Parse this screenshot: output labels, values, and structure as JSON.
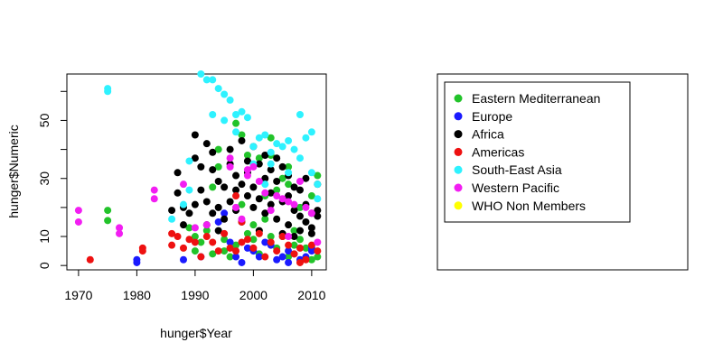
{
  "chart_data": {
    "type": "scatter",
    "title": "",
    "xlabel": "hunger$Year",
    "ylabel": "hunger$Numeric",
    "xlim": [
      1968,
      2012.5
    ],
    "ylim": [
      -1.5,
      66
    ],
    "x_ticks": [
      1970,
      1980,
      1990,
      2000,
      2010
    ],
    "y_ticks": [
      0,
      10,
      30,
      50
    ],
    "grid": false,
    "legend_position": "right (separate panel)",
    "series": [
      {
        "name": "Eastern Mediterranean",
        "color": "#22c32a",
        "points": [
          [
            1975,
            19
          ],
          [
            1975,
            15.5
          ],
          [
            1989,
            13
          ],
          [
            1990,
            10
          ],
          [
            1990,
            5
          ],
          [
            1991,
            8
          ],
          [
            1992,
            12
          ],
          [
            1993,
            4
          ],
          [
            1993,
            27
          ],
          [
            1994,
            40
          ],
          [
            1994,
            34
          ],
          [
            1995,
            5
          ],
          [
            1995,
            9
          ],
          [
            1996,
            3
          ],
          [
            1997,
            7
          ],
          [
            1997,
            49
          ],
          [
            1998,
            45
          ],
          [
            1998,
            21
          ],
          [
            1999,
            11
          ],
          [
            1999,
            38
          ],
          [
            2000,
            9
          ],
          [
            2000,
            14
          ],
          [
            2001,
            4
          ],
          [
            2001,
            37
          ],
          [
            2002,
            16
          ],
          [
            2002,
            24
          ],
          [
            2003,
            44
          ],
          [
            2003,
            10
          ],
          [
            2003,
            38
          ],
          [
            2004,
            6
          ],
          [
            2004,
            26
          ],
          [
            2005,
            10
          ],
          [
            2005,
            30
          ],
          [
            2006,
            3
          ],
          [
            2006,
            28
          ],
          [
            2006,
            34
          ],
          [
            2007,
            12
          ],
          [
            2007,
            7
          ],
          [
            2008,
            9
          ],
          [
            2008,
            20
          ],
          [
            2009,
            6
          ],
          [
            2010,
            24
          ],
          [
            2010,
            2
          ],
          [
            2011,
            31
          ],
          [
            2011,
            3
          ]
        ]
      },
      {
        "name": "Europe",
        "color": "#1a1aff",
        "points": [
          [
            1980,
            2
          ],
          [
            1980,
            1
          ],
          [
            1988,
            2
          ],
          [
            1991,
            3
          ],
          [
            1994,
            15
          ],
          [
            1995,
            18
          ],
          [
            1996,
            8
          ],
          [
            1997,
            3
          ],
          [
            1998,
            1
          ],
          [
            1999,
            6
          ],
          [
            2000,
            5
          ],
          [
            2001,
            3
          ],
          [
            2002,
            8
          ],
          [
            2003,
            7
          ],
          [
            2004,
            2
          ],
          [
            2005,
            3
          ],
          [
            2006,
            1
          ],
          [
            2006,
            5
          ],
          [
            2007,
            4
          ],
          [
            2008,
            2
          ],
          [
            2009,
            3
          ],
          [
            2010,
            6
          ],
          [
            2010,
            5
          ]
        ]
      },
      {
        "name": "Africa",
        "color": "#000000",
        "points": [
          [
            1986,
            19
          ],
          [
            1987,
            32
          ],
          [
            1987,
            25
          ],
          [
            1988,
            20
          ],
          [
            1988,
            14
          ],
          [
            1989,
            18
          ],
          [
            1990,
            45
          ],
          [
            1990,
            21
          ],
          [
            1990,
            37
          ],
          [
            1991,
            26
          ],
          [
            1991,
            34
          ],
          [
            1992,
            42
          ],
          [
            1992,
            22
          ],
          [
            1992,
            14
          ],
          [
            1993,
            33
          ],
          [
            1993,
            18
          ],
          [
            1993,
            39
          ],
          [
            1994,
            20
          ],
          [
            1994,
            29
          ],
          [
            1994,
            12
          ],
          [
            1995,
            27
          ],
          [
            1995,
            16
          ],
          [
            1996,
            40
          ],
          [
            1996,
            22
          ],
          [
            1996,
            35
          ],
          [
            1997,
            31
          ],
          [
            1997,
            19
          ],
          [
            1997,
            26
          ],
          [
            1998,
            43
          ],
          [
            1998,
            28
          ],
          [
            1998,
            15
          ],
          [
            1999,
            36
          ],
          [
            1999,
            24
          ],
          [
            1999,
            32
          ],
          [
            2000,
            41
          ],
          [
            2000,
            20
          ],
          [
            2000,
            27
          ],
          [
            2001,
            35
          ],
          [
            2001,
            23
          ],
          [
            2001,
            12
          ],
          [
            2002,
            38
          ],
          [
            2002,
            30
          ],
          [
            2002,
            18
          ],
          [
            2003,
            33
          ],
          [
            2003,
            21
          ],
          [
            2003,
            25
          ],
          [
            2004,
            37
          ],
          [
            2004,
            29
          ],
          [
            2004,
            16
          ],
          [
            2005,
            34
          ],
          [
            2005,
            22
          ],
          [
            2005,
            11
          ],
          [
            2006,
            31
          ],
          [
            2006,
            24
          ],
          [
            2006,
            14
          ],
          [
            2007,
            27
          ],
          [
            2007,
            19
          ],
          [
            2007,
            10
          ],
          [
            2008,
            26
          ],
          [
            2008,
            17
          ],
          [
            2008,
            12
          ],
          [
            2009,
            30
          ],
          [
            2009,
            21
          ],
          [
            2009,
            15
          ],
          [
            2010,
            18
          ],
          [
            2010,
            13
          ],
          [
            2010,
            11
          ],
          [
            2011,
            19
          ],
          [
            2011,
            17
          ],
          [
            2011,
            28
          ]
        ]
      },
      {
        "name": "Americas",
        "color": "#ee1111",
        "points": [
          [
            1972,
            2
          ],
          [
            1981,
            6
          ],
          [
            1981,
            5
          ],
          [
            1986,
            11
          ],
          [
            1986,
            7
          ],
          [
            1987,
            10
          ],
          [
            1988,
            6
          ],
          [
            1989,
            9
          ],
          [
            1990,
            8
          ],
          [
            1991,
            3
          ],
          [
            1992,
            10
          ],
          [
            1993,
            8
          ],
          [
            1994,
            5
          ],
          [
            1995,
            11
          ],
          [
            1996,
            6
          ],
          [
            1997,
            24
          ],
          [
            1997,
            5
          ],
          [
            1998,
            15
          ],
          [
            1998,
            8
          ],
          [
            1999,
            9
          ],
          [
            2000,
            6
          ],
          [
            2001,
            11
          ],
          [
            2002,
            3
          ],
          [
            2003,
            8
          ],
          [
            2004,
            5
          ],
          [
            2005,
            10
          ],
          [
            2006,
            7
          ],
          [
            2007,
            4
          ],
          [
            2008,
            6
          ],
          [
            2008,
            1
          ],
          [
            2009,
            2
          ],
          [
            2010,
            7
          ],
          [
            2011,
            5
          ]
        ]
      },
      {
        "name": "South-East Asia",
        "color": "#2ef2ff",
        "points": [
          [
            1975,
            61
          ],
          [
            1975,
            60
          ],
          [
            1986,
            16
          ],
          [
            1988,
            21
          ],
          [
            1989,
            26
          ],
          [
            1989,
            36
          ],
          [
            1991,
            66
          ],
          [
            1992,
            64
          ],
          [
            1993,
            64
          ],
          [
            1993,
            52
          ],
          [
            1994,
            61
          ],
          [
            1995,
            59
          ],
          [
            1995,
            50
          ],
          [
            1996,
            57
          ],
          [
            1997,
            52
          ],
          [
            1997,
            46
          ],
          [
            1998,
            53
          ],
          [
            1999,
            51
          ],
          [
            2000,
            41
          ],
          [
            2000,
            35
          ],
          [
            2001,
            44
          ],
          [
            2002,
            45
          ],
          [
            2002,
            28
          ],
          [
            2003,
            39
          ],
          [
            2003,
            35
          ],
          [
            2004,
            42
          ],
          [
            2005,
            41
          ],
          [
            2006,
            43
          ],
          [
            2006,
            32
          ],
          [
            2007,
            40
          ],
          [
            2008,
            52
          ],
          [
            2008,
            37
          ],
          [
            2009,
            44
          ],
          [
            2010,
            46
          ],
          [
            2010,
            32
          ],
          [
            2011,
            28
          ],
          [
            2011,
            23
          ]
        ]
      },
      {
        "name": "Western Pacific",
        "color": "#f21ef2",
        "points": [
          [
            1970,
            19
          ],
          [
            1970,
            15
          ],
          [
            1977,
            13
          ],
          [
            1977,
            11
          ],
          [
            1983,
            26
          ],
          [
            1983,
            23
          ],
          [
            1988,
            28
          ],
          [
            1990,
            13
          ],
          [
            1992,
            14
          ],
          [
            1996,
            37
          ],
          [
            1996,
            34
          ],
          [
            1997,
            20
          ],
          [
            1998,
            16
          ],
          [
            1999,
            33
          ],
          [
            1999,
            31
          ],
          [
            2000,
            34
          ],
          [
            2001,
            29
          ],
          [
            2002,
            25
          ],
          [
            2003,
            19
          ],
          [
            2004,
            24
          ],
          [
            2005,
            23
          ],
          [
            2006,
            22
          ],
          [
            2006,
            10
          ],
          [
            2007,
            21
          ],
          [
            2008,
            29
          ],
          [
            2009,
            20
          ],
          [
            2010,
            18
          ],
          [
            2011,
            8
          ]
        ]
      },
      {
        "name": "WHO Non Members",
        "color": "#ffff00",
        "points": []
      }
    ]
  }
}
